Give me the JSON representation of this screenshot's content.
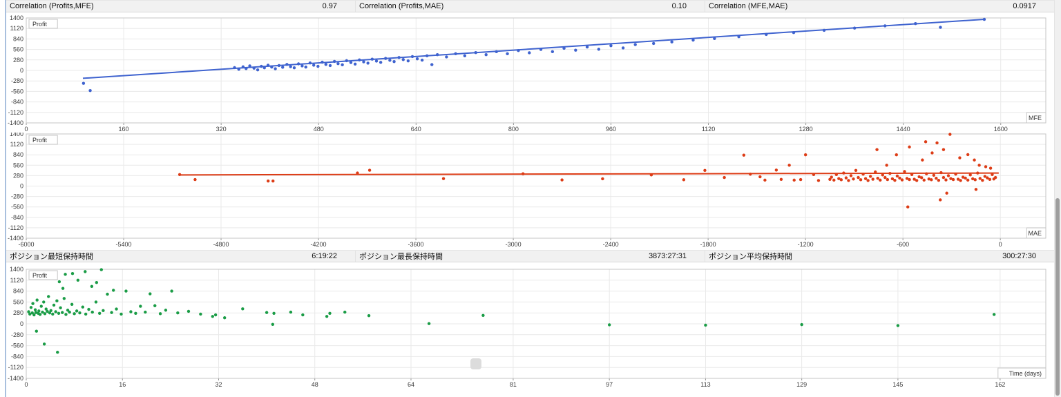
{
  "stats": {
    "correlation": [
      {
        "label": "Correlation (Profits,MFE)",
        "value": "0.97"
      },
      {
        "label": "Correlation (Profits,MAE)",
        "value": "0.10"
      },
      {
        "label": "Correlation (MFE,MAE)",
        "value": "0.0917"
      }
    ],
    "holding": [
      {
        "label": "ポジション最短保持時間",
        "value": "6:19:22"
      },
      {
        "label": "ポジション最長保持時間",
        "value": "3873:27:31"
      },
      {
        "label": "ポジション平均保持時間",
        "value": "300:27:30"
      }
    ]
  },
  "colors": {
    "mfe_series": "#3f63cf",
    "mae_series": "#dd3c16",
    "time_series": "#1a9c46",
    "grid": "#e9e9e9",
    "plot_border": "#c6c6c6",
    "tick_text": "#3c3c3c",
    "header_bg": "#f1f1f1"
  },
  "chart_data": [
    {
      "type": "scatter",
      "name": "profit-vs-mfe",
      "ylabel": "Profit",
      "xlabel": "MFE",
      "color": "#3f63cf",
      "ylim": [
        -1400,
        1400
      ],
      "yticks": [
        1400,
        1120,
        840,
        560,
        280,
        0,
        -280,
        -560,
        -840,
        -1120,
        -1400
      ],
      "xlim": [
        0,
        1674
      ],
      "xticks": [
        0,
        160,
        320,
        480,
        640,
        800,
        960,
        1120,
        1280,
        1440,
        1600
      ],
      "grid": true,
      "trendline": {
        "from": [
          93,
          -210
        ],
        "to": [
          1573,
          1363
        ]
      },
      "points": [
        [
          94,
          -345
        ],
        [
          105,
          -537
        ],
        [
          342,
          75
        ],
        [
          349,
          30
        ],
        [
          356,
          95
        ],
        [
          361,
          50
        ],
        [
          367,
          120
        ],
        [
          374,
          60
        ],
        [
          380,
          15
        ],
        [
          386,
          110
        ],
        [
          391,
          70
        ],
        [
          397,
          140
        ],
        [
          403,
          90
        ],
        [
          409,
          45
        ],
        [
          415,
          130
        ],
        [
          421,
          85
        ],
        [
          428,
          160
        ],
        [
          434,
          100
        ],
        [
          440,
          70
        ],
        [
          447,
          175
        ],
        [
          453,
          120
        ],
        [
          459,
          90
        ],
        [
          466,
          200
        ],
        [
          472,
          140
        ],
        [
          479,
          110
        ],
        [
          486,
          220
        ],
        [
          492,
          160
        ],
        [
          499,
          130
        ],
        [
          506,
          240
        ],
        [
          512,
          180
        ],
        [
          519,
          150
        ],
        [
          526,
          260
        ],
        [
          533,
          210
        ],
        [
          540,
          170
        ],
        [
          547,
          280
        ],
        [
          554,
          230
        ],
        [
          561,
          195
        ],
        [
          568,
          300
        ],
        [
          575,
          250
        ],
        [
          582,
          215
        ],
        [
          590,
          320
        ],
        [
          597,
          270
        ],
        [
          604,
          235
        ],
        [
          612,
          345
        ],
        [
          619,
          290
        ],
        [
          627,
          255
        ],
        [
          634,
          370
        ],
        [
          642,
          310
        ],
        [
          650,
          275
        ],
        [
          658,
          390
        ],
        [
          666,
          155
        ],
        [
          675,
          420
        ],
        [
          690,
          360
        ],
        [
          705,
          445
        ],
        [
          720,
          390
        ],
        [
          738,
          475
        ],
        [
          755,
          420
        ],
        [
          772,
          500
        ],
        [
          790,
          445
        ],
        [
          808,
          530
        ],
        [
          826,
          470
        ],
        [
          845,
          560
        ],
        [
          864,
          500
        ],
        [
          883,
          590
        ],
        [
          902,
          540
        ],
        [
          921,
          625
        ],
        [
          940,
          565
        ],
        [
          960,
          660
        ],
        [
          980,
          600
        ],
        [
          1000,
          690
        ],
        [
          1030,
          720
        ],
        [
          1060,
          760
        ],
        [
          1095,
          810
        ],
        [
          1130,
          850
        ],
        [
          1170,
          900
        ],
        [
          1215,
          960
        ],
        [
          1260,
          1010
        ],
        [
          1310,
          1070
        ],
        [
          1360,
          1130
        ],
        [
          1410,
          1190
        ],
        [
          1460,
          1250
        ],
        [
          1501,
          1150
        ],
        [
          1573,
          1363
        ]
      ]
    },
    {
      "type": "scatter",
      "name": "profit-vs-mae",
      "ylabel": "Profit",
      "xlabel": "MAE",
      "color": "#dd3c16",
      "ylim": [
        -1400,
        1400
      ],
      "yticks": [
        1400,
        1120,
        840,
        560,
        280,
        0,
        -280,
        -560,
        -840,
        -1120,
        -1400
      ],
      "xlim": [
        -6000,
        280
      ],
      "xticks": [
        -6000,
        -5400,
        -4800,
        -4200,
        -3600,
        -3000,
        -2400,
        -1800,
        -1200,
        -600,
        0
      ],
      "grid": true,
      "trendline": {
        "from": [
          -5055,
          300
        ],
        "to": [
          -10,
          350
        ]
      },
      "points": [
        [
          -5055,
          310
        ],
        [
          -4960,
          175
        ],
        [
          -4510,
          135
        ],
        [
          -4480,
          135
        ],
        [
          -3960,
          350
        ],
        [
          -3885,
          425
        ],
        [
          -3430,
          200
        ],
        [
          -2940,
          330
        ],
        [
          -2700,
          165
        ],
        [
          -2450,
          195
        ],
        [
          -2150,
          300
        ],
        [
          -1950,
          170
        ],
        [
          -1820,
          420
        ],
        [
          -1700,
          230
        ],
        [
          -1580,
          830
        ],
        [
          -1540,
          320
        ],
        [
          -1480,
          250
        ],
        [
          -1450,
          160
        ],
        [
          -1380,
          430
        ],
        [
          -1350,
          180
        ],
        [
          -1300,
          560
        ],
        [
          -1270,
          160
        ],
        [
          -1230,
          175
        ],
        [
          -1200,
          840
        ],
        [
          -1150,
          310
        ],
        [
          -1120,
          150
        ],
        [
          -1050,
          180
        ],
        [
          -1040,
          240
        ],
        [
          -1025,
          160
        ],
        [
          -1010,
          310
        ],
        [
          -995,
          200
        ],
        [
          -980,
          170
        ],
        [
          -965,
          350
        ],
        [
          -950,
          220
        ],
        [
          -935,
          150
        ],
        [
          -920,
          280
        ],
        [
          -905,
          190
        ],
        [
          -890,
          420
        ],
        [
          -875,
          230
        ],
        [
          -860,
          170
        ],
        [
          -845,
          320
        ],
        [
          -830,
          200
        ],
        [
          -815,
          150
        ],
        [
          -800,
          260
        ],
        [
          -785,
          185
        ],
        [
          -770,
          380
        ],
        [
          -755,
          210
        ],
        [
          -740,
          160
        ],
        [
          -725,
          300
        ],
        [
          -710,
          230
        ],
        [
          -695,
          175
        ],
        [
          -680,
          340
        ],
        [
          -665,
          195
        ],
        [
          -650,
          155
        ],
        [
          -635,
          270
        ],
        [
          -620,
          215
        ],
        [
          -605,
          165
        ],
        [
          -590,
          390
        ],
        [
          -575,
          205
        ],
        [
          -560,
          175
        ],
        [
          -545,
          310
        ],
        [
          -530,
          185
        ],
        [
          -515,
          150
        ],
        [
          -500,
          250
        ],
        [
          -485,
          225
        ],
        [
          -470,
          160
        ],
        [
          -455,
          330
        ],
        [
          -440,
          190
        ],
        [
          -425,
          170
        ],
        [
          -410,
          290
        ],
        [
          -395,
          210
        ],
        [
          -380,
          155
        ],
        [
          -365,
          360
        ],
        [
          -350,
          230
        ],
        [
          -335,
          165
        ],
        [
          -320,
          280
        ],
        [
          -305,
          200
        ],
        [
          -290,
          175
        ],
        [
          -275,
          320
        ],
        [
          -260,
          185
        ],
        [
          -245,
          150
        ],
        [
          -230,
          240
        ],
        [
          -215,
          215
        ],
        [
          -200,
          160
        ],
        [
          -185,
          300
        ],
        [
          -170,
          195
        ],
        [
          -155,
          170
        ],
        [
          -140,
          350
        ],
        [
          -125,
          205
        ],
        [
          -110,
          155
        ],
        [
          -95,
          260
        ],
        [
          -80,
          220
        ],
        [
          -65,
          180
        ],
        [
          -50,
          310
        ],
        [
          -40,
          190
        ],
        [
          -30,
          230
        ],
        [
          -760,
          980
        ],
        [
          -700,
          560
        ],
        [
          -640,
          840
        ],
        [
          -560,
          1050
        ],
        [
          -480,
          700
        ],
        [
          -460,
          1190
        ],
        [
          -420,
          890
        ],
        [
          -390,
          1160
        ],
        [
          -350,
          980
        ],
        [
          -310,
          1390
        ],
        [
          -250,
          760
        ],
        [
          -200,
          845
        ],
        [
          -160,
          700
        ],
        [
          -130,
          560
        ],
        [
          -90,
          520
        ],
        [
          -60,
          480
        ],
        [
          -570,
          -560
        ],
        [
          -370,
          -370
        ],
        [
          -330,
          -190
        ],
        [
          -150,
          -90
        ]
      ]
    },
    {
      "type": "scatter",
      "name": "profit-vs-holding-time",
      "ylabel": "Profit",
      "xlabel": "Time (days)",
      "color": "#1a9c46",
      "ylim": [
        -1400,
        1400
      ],
      "yticks": [
        1400,
        1120,
        840,
        560,
        280,
        0,
        -280,
        -560,
        -840,
        -1120,
        -1400
      ],
      "xlim": [
        0,
        169.6
      ],
      "xticks": [
        0,
        16,
        32,
        48,
        64,
        81,
        97,
        113,
        129,
        145,
        162
      ],
      "grid": true,
      "trendline": null,
      "points": [
        [
          0.4,
          310
        ],
        [
          0.6,
          250
        ],
        [
          0.8,
          420
        ],
        [
          1.0,
          280
        ],
        [
          1.1,
          520
        ],
        [
          1.3,
          230
        ],
        [
          1.5,
          360
        ],
        [
          1.6,
          290
        ],
        [
          1.8,
          610
        ],
        [
          2.0,
          270
        ],
        [
          2.1,
          330
        ],
        [
          2.3,
          240
        ],
        [
          2.5,
          450
        ],
        [
          2.7,
          300
        ],
        [
          2.9,
          560
        ],
        [
          3.1,
          260
        ],
        [
          3.3,
          380
        ],
        [
          3.5,
          320
        ],
        [
          3.7,
          700
        ],
        [
          3.9,
          280
        ],
        [
          4.1,
          340
        ],
        [
          4.4,
          250
        ],
        [
          4.6,
          480
        ],
        [
          4.9,
          310
        ],
        [
          5.1,
          590
        ],
        [
          5.4,
          270
        ],
        [
          5.7,
          410
        ],
        [
          6.0,
          290
        ],
        [
          6.3,
          650
        ],
        [
          6.6,
          240
        ],
        [
          6.9,
          350
        ],
        [
          7.2,
          300
        ],
        [
          7.6,
          500
        ],
        [
          8.0,
          260
        ],
        [
          8.4,
          330
        ],
        [
          8.9,
          280
        ],
        [
          9.4,
          430
        ],
        [
          9.9,
          250
        ],
        [
          10.4,
          370
        ],
        [
          11.0,
          300
        ],
        [
          11.6,
          560
        ],
        [
          12.2,
          270
        ],
        [
          12.8,
          340
        ],
        [
          13.5,
          760
        ],
        [
          14.2,
          290
        ],
        [
          15.0,
          380
        ],
        [
          15.8,
          250
        ],
        [
          16.6,
          840
        ],
        [
          17.4,
          310
        ],
        [
          18.2,
          270
        ],
        [
          19.0,
          450
        ],
        [
          19.8,
          300
        ],
        [
          20.6,
          770
        ],
        [
          21.4,
          465
        ],
        [
          22.3,
          260
        ],
        [
          23.2,
          350
        ],
        [
          24.2,
          840
        ],
        [
          25.2,
          280
        ],
        [
          27.0,
          320
        ],
        [
          29.0,
          250
        ],
        [
          4.2,
          1180
        ],
        [
          5.5,
          1080
        ],
        [
          6.5,
          1270
        ],
        [
          7.7,
          1290
        ],
        [
          8.6,
          1120
        ],
        [
          9.8,
          1340
        ],
        [
          11.7,
          1060
        ],
        [
          12.5,
          1390
        ],
        [
          6.1,
          910
        ],
        [
          10.9,
          960
        ],
        [
          14.5,
          860
        ],
        [
          1.7,
          -190
        ],
        [
          3.0,
          -520
        ],
        [
          5.2,
          -730
        ],
        [
          31,
          190
        ],
        [
          31.5,
          230
        ],
        [
          33,
          155
        ],
        [
          36,
          385
        ],
        [
          40,
          290
        ],
        [
          41.2,
          270
        ],
        [
          41,
          -15
        ],
        [
          44,
          300
        ],
        [
          46,
          230
        ],
        [
          50,
          190
        ],
        [
          50.5,
          270
        ],
        [
          53,
          300
        ],
        [
          57,
          210
        ],
        [
          67,
          5
        ],
        [
          76,
          215
        ],
        [
          97,
          -25
        ],
        [
          113,
          -35
        ],
        [
          129,
          -20
        ],
        [
          145,
          -45
        ],
        [
          161,
          240
        ]
      ]
    }
  ]
}
